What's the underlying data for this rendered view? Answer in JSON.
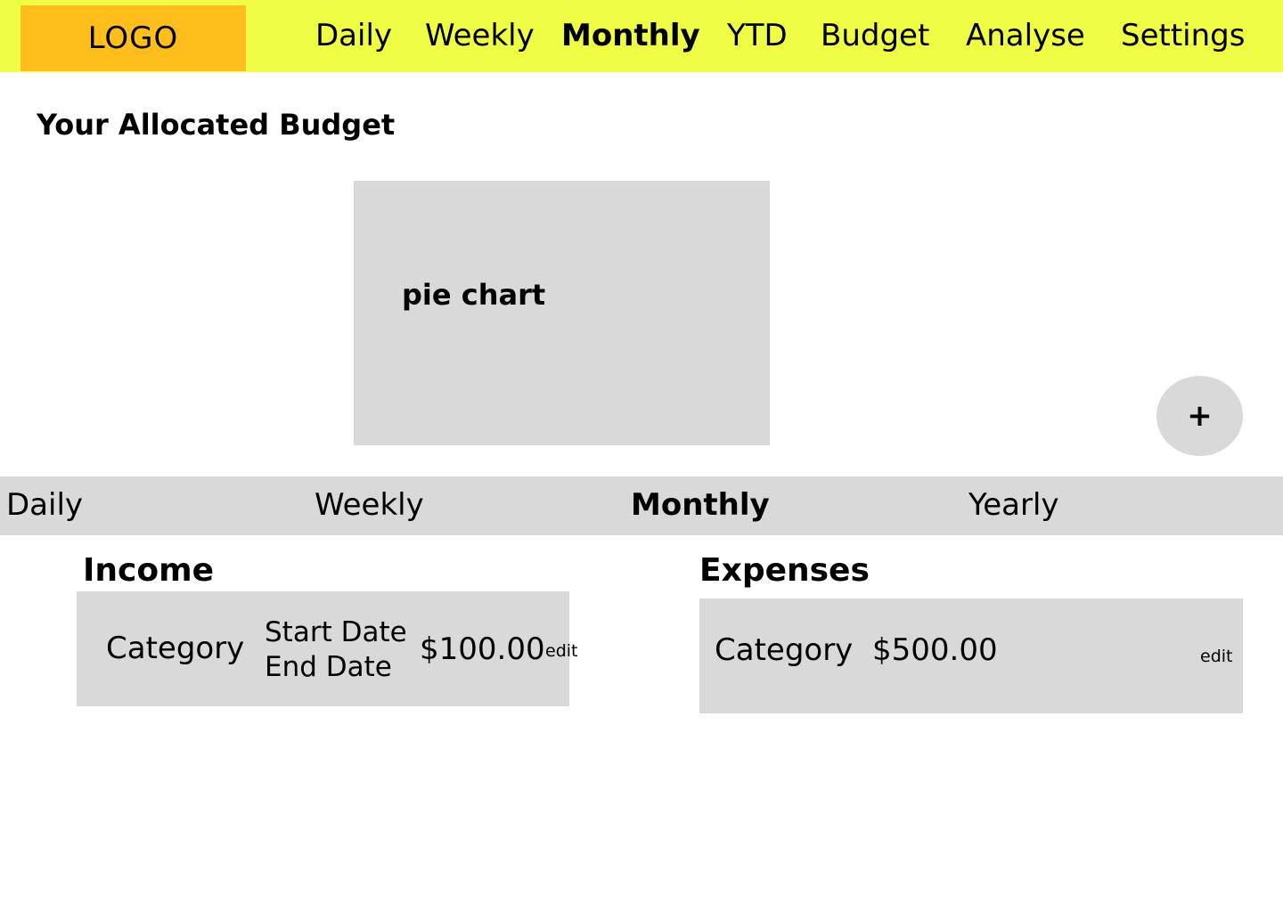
{
  "header": {
    "logo_text": "LOGO",
    "nav": [
      "Daily",
      "Weekly",
      "Monthly",
      "YTD",
      "Budget",
      "Analyse",
      "Settings"
    ],
    "active_nav": "Monthly"
  },
  "main": {
    "title": "Your Allocated Budget",
    "chart_placeholder": "pie chart",
    "add_button": "+"
  },
  "period_tabs": {
    "items": [
      "Daily",
      "Weekly",
      "Monthly",
      "Yearly"
    ],
    "active": "Monthly"
  },
  "income": {
    "title": "Income",
    "category": "Category",
    "start_date": "Start Date",
    "end_date": "End Date",
    "amount": "$100.00",
    "edit": "edit"
  },
  "expenses": {
    "title": "Expenses",
    "category": "Category",
    "amount": "$500.00",
    "edit": "edit"
  }
}
